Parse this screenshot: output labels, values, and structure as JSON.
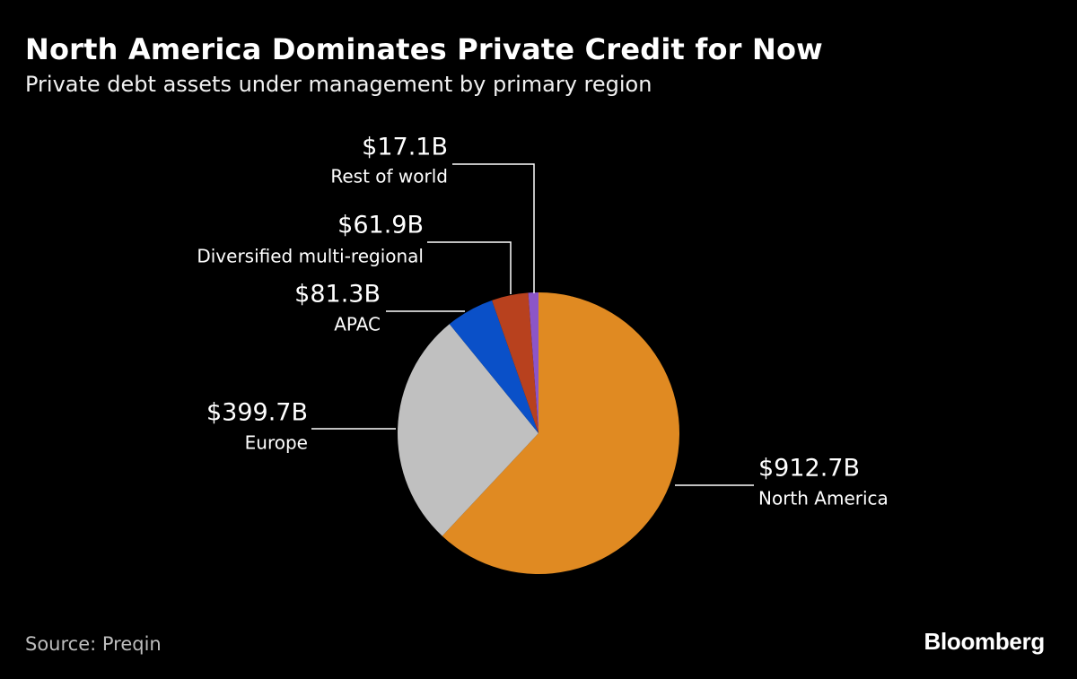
{
  "header": {
    "title": "North America Dominates Private Credit for Now",
    "subtitle": "Private debt assets under management by primary region"
  },
  "chart_data": {
    "type": "pie",
    "title": "North America Dominates Private Credit for Now",
    "subtitle": "Private debt assets under management by primary region",
    "slices": [
      {
        "label": "North America",
        "value": 912.7,
        "value_label": "$912.7B",
        "color": "#e08a22"
      },
      {
        "label": "Europe",
        "value": 399.7,
        "value_label": "$399.7B",
        "color": "#c0c0c0"
      },
      {
        "label": "APAC",
        "value": 81.3,
        "value_label": "$81.3B",
        "color": "#0a50c8"
      },
      {
        "label": "Diversified multi-regional",
        "value": 61.9,
        "value_label": "$61.9B",
        "color": "#b8411e"
      },
      {
        "label": "Rest of world",
        "value": 17.1,
        "value_label": "$17.1B",
        "color": "#8c55c8"
      }
    ],
    "direction": "clockwise from 12 o'clock",
    "legend": "callout labels"
  },
  "footer": {
    "source": "Source: Preqin",
    "brand": "Bloomberg"
  }
}
